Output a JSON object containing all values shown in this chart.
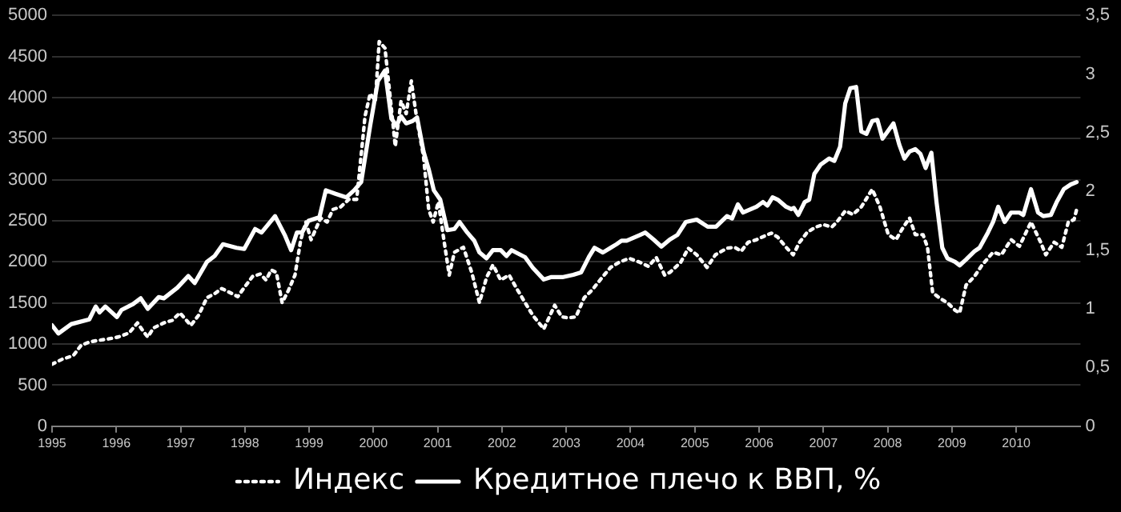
{
  "chart_data": {
    "type": "line",
    "xlim": [
      1995,
      2011
    ],
    "xticks": [
      1995,
      1996,
      1997,
      1998,
      1999,
      2000,
      2001,
      2002,
      2003,
      2004,
      2005,
      2006,
      2007,
      2008,
      2009,
      2010
    ],
    "ylim": [
      0,
      5000
    ],
    "yticks": [
      0,
      500,
      1000,
      1500,
      2000,
      2500,
      3000,
      3500,
      4000,
      4500,
      5000
    ],
    "y2lim": [
      0,
      3.5
    ],
    "y2ticks": [
      0,
      {
        "value": 0.5,
        "label": "0,5"
      },
      1,
      {
        "value": 1.5,
        "label": "1,5"
      },
      2,
      {
        "value": 2.5,
        "label": "2,5"
      },
      3,
      {
        "value": 3.5,
        "label": "3,5"
      }
    ],
    "grid": "y",
    "legend": "bottom",
    "marker": "none",
    "series": [
      {
        "name": "Индекс",
        "color": "#ffffff",
        "line_style": "dotted",
        "axis": "y",
        "x": [
          1995.0,
          1995.16,
          1995.33,
          1995.45,
          1995.58,
          1995.7,
          1995.87,
          1996.03,
          1996.2,
          1996.33,
          1996.41,
          1996.49,
          1996.58,
          1996.74,
          1996.87,
          1996.99,
          1997.16,
          1997.28,
          1997.41,
          1997.53,
          1997.64,
          1997.74,
          1997.89,
          1997.99,
          1998.12,
          1998.24,
          1998.33,
          1998.41,
          1998.49,
          1998.58,
          1998.68,
          1998.78,
          1998.87,
          1998.95,
          1999.03,
          1999.18,
          1999.28,
          1999.37,
          1999.49,
          1999.62,
          1999.74,
          1999.87,
          1999.95,
          2000.03,
          2000.09,
          2000.18,
          2000.28,
          2000.34,
          2000.43,
          2000.51,
          2000.59,
          2000.68,
          2000.78,
          2000.86,
          2000.93,
          2001.01,
          2001.09,
          2001.18,
          2001.26,
          2001.4,
          2001.53,
          2001.65,
          2001.76,
          2001.86,
          2001.98,
          2002.11,
          2002.23,
          2002.36,
          2002.48,
          2002.65,
          2002.73,
          2002.82,
          2002.93,
          2003.03,
          2003.15,
          2003.28,
          2003.4,
          2003.57,
          2003.69,
          2003.82,
          2003.98,
          2004.15,
          2004.28,
          2004.4,
          2004.53,
          2004.61,
          2004.78,
          2004.9,
          2005.03,
          2005.19,
          2005.32,
          2005.5,
          2005.62,
          2005.72,
          2005.83,
          2005.96,
          2006.08,
          2006.19,
          2006.29,
          2006.42,
          2006.53,
          2006.63,
          2006.75,
          2006.88,
          2007.0,
          2007.13,
          2007.21,
          2007.34,
          2007.46,
          2007.59,
          2007.76,
          2007.88,
          2008.01,
          2008.13,
          2008.22,
          2008.34,
          2008.43,
          2008.55,
          2008.62,
          2008.7,
          2008.8,
          2008.93,
          2009.05,
          2009.12,
          2009.22,
          2009.35,
          2009.47,
          2009.64,
          2009.77,
          2009.92,
          2010.05,
          2010.23,
          2010.38,
          2010.46,
          2010.59,
          2010.71,
          2010.81,
          2010.9,
          2010.95
        ],
        "values": [
          755,
          816,
          859,
          982,
          1025,
          1043,
          1061,
          1086,
          1135,
          1258,
          1166,
          1086,
          1196,
          1258,
          1288,
          1380,
          1227,
          1350,
          1564,
          1613,
          1675,
          1638,
          1577,
          1687,
          1822,
          1853,
          1779,
          1902,
          1871,
          1503,
          1656,
          1840,
          2270,
          2485,
          2270,
          2534,
          2485,
          2638,
          2669,
          2761,
          2761,
          3773,
          4049,
          3957,
          4681,
          4601,
          3865,
          3405,
          3957,
          3804,
          4202,
          3712,
          3282,
          2638,
          2485,
          2730,
          2301,
          1840,
          2117,
          2178,
          1871,
          1503,
          1810,
          1963,
          1779,
          1840,
          1675,
          1503,
          1350,
          1184,
          1319,
          1472,
          1331,
          1319,
          1331,
          1564,
          1656,
          1822,
          1933,
          1994,
          2043,
          1994,
          1945,
          2055,
          1840,
          1871,
          1994,
          2166,
          2086,
          1933,
          2086,
          2166,
          2178,
          2129,
          2239,
          2270,
          2313,
          2350,
          2301,
          2178,
          2086,
          2239,
          2362,
          2423,
          2454,
          2423,
          2485,
          2620,
          2577,
          2669,
          2883,
          2669,
          2331,
          2270,
          2393,
          2534,
          2331,
          2331,
          2178,
          1626,
          1564,
          1503,
          1411,
          1380,
          1718,
          1822,
          1963,
          2117,
          2086,
          2270,
          2190,
          2485,
          2239,
          2086,
          2239,
          2178,
          2485,
          2515,
          2669
        ]
      },
      {
        "name": "Кредитное плечо к ВВП, %",
        "color": "#ffffff",
        "line_style": "solid",
        "axis": "y2",
        "x": [
          1995.0,
          1995.1,
          1995.3,
          1995.58,
          1995.68,
          1995.74,
          1995.83,
          1996.01,
          1996.08,
          1996.26,
          1996.38,
          1996.49,
          1996.66,
          1996.74,
          1996.95,
          1997.12,
          1997.22,
          1997.41,
          1997.53,
          1997.66,
          1997.87,
          1997.99,
          1998.16,
          1998.26,
          1998.47,
          1998.62,
          1998.72,
          1998.81,
          1998.89,
          1998.99,
          1999.16,
          1999.26,
          1999.41,
          1999.58,
          1999.7,
          1999.81,
          1999.95,
          2000.07,
          2000.18,
          2000.28,
          2000.36,
          2000.43,
          2000.51,
          2000.61,
          2000.68,
          2000.78,
          2000.86,
          2000.94,
          2001.04,
          2001.15,
          2001.26,
          2001.34,
          2001.46,
          2001.57,
          2001.65,
          2001.76,
          2001.86,
          2001.98,
          2002.07,
          2002.15,
          2002.36,
          2002.48,
          2002.65,
          2002.76,
          2002.94,
          2003.11,
          2003.23,
          2003.36,
          2003.44,
          2003.57,
          2003.69,
          2003.78,
          2003.86,
          2003.94,
          2004.15,
          2004.23,
          2004.36,
          2004.48,
          2004.61,
          2004.73,
          2004.86,
          2005.03,
          2005.2,
          2005.33,
          2005.5,
          2005.58,
          2005.67,
          2005.75,
          2005.96,
          2006.06,
          2006.13,
          2006.21,
          2006.29,
          2006.42,
          2006.5,
          2006.54,
          2006.61,
          2006.71,
          2006.78,
          2006.86,
          2006.96,
          2007.09,
          2007.17,
          2007.26,
          2007.34,
          2007.42,
          2007.51,
          2007.59,
          2007.67,
          2007.76,
          2007.84,
          2007.92,
          2008.09,
          2008.18,
          2008.26,
          2008.34,
          2008.43,
          2008.51,
          2008.59,
          2008.68,
          2008.76,
          2008.85,
          2008.93,
          2009.05,
          2009.12,
          2009.22,
          2009.35,
          2009.43,
          2009.56,
          2009.64,
          2009.72,
          2009.82,
          2009.92,
          2010.05,
          2010.11,
          2010.23,
          2010.34,
          2010.42,
          2010.54,
          2010.63,
          2010.74,
          2010.85,
          2010.94
        ],
        "values": [
          0.86,
          0.79,
          0.87,
          0.91,
          1.02,
          0.97,
          1.02,
          0.93,
          0.99,
          1.04,
          1.09,
          1.0,
          1.1,
          1.09,
          1.18,
          1.28,
          1.22,
          1.4,
          1.45,
          1.55,
          1.52,
          1.51,
          1.68,
          1.65,
          1.79,
          1.63,
          1.5,
          1.65,
          1.65,
          1.75,
          1.78,
          2.01,
          1.98,
          1.95,
          2.01,
          2.08,
          2.56,
          2.94,
          3.03,
          2.62,
          2.56,
          2.64,
          2.58,
          2.6,
          2.63,
          2.34,
          2.19,
          2.01,
          1.93,
          1.67,
          1.68,
          1.74,
          1.65,
          1.58,
          1.48,
          1.43,
          1.5,
          1.5,
          1.45,
          1.5,
          1.44,
          1.35,
          1.25,
          1.27,
          1.27,
          1.29,
          1.31,
          1.45,
          1.52,
          1.48,
          1.52,
          1.55,
          1.58,
          1.58,
          1.63,
          1.65,
          1.59,
          1.53,
          1.59,
          1.63,
          1.74,
          1.76,
          1.7,
          1.7,
          1.79,
          1.77,
          1.89,
          1.82,
          1.87,
          1.91,
          1.88,
          1.95,
          1.93,
          1.87,
          1.85,
          1.86,
          1.8,
          1.91,
          1.93,
          2.15,
          2.23,
          2.28,
          2.26,
          2.38,
          2.75,
          2.88,
          2.89,
          2.51,
          2.49,
          2.6,
          2.61,
          2.45,
          2.58,
          2.4,
          2.28,
          2.34,
          2.36,
          2.32,
          2.2,
          2.33,
          1.91,
          1.52,
          1.43,
          1.4,
          1.37,
          1.42,
          1.49,
          1.52,
          1.65,
          1.74,
          1.87,
          1.74,
          1.82,
          1.82,
          1.8,
          2.02,
          1.82,
          1.79,
          1.8,
          1.91,
          2.02,
          2.06,
          2.08
        ]
      }
    ]
  }
}
